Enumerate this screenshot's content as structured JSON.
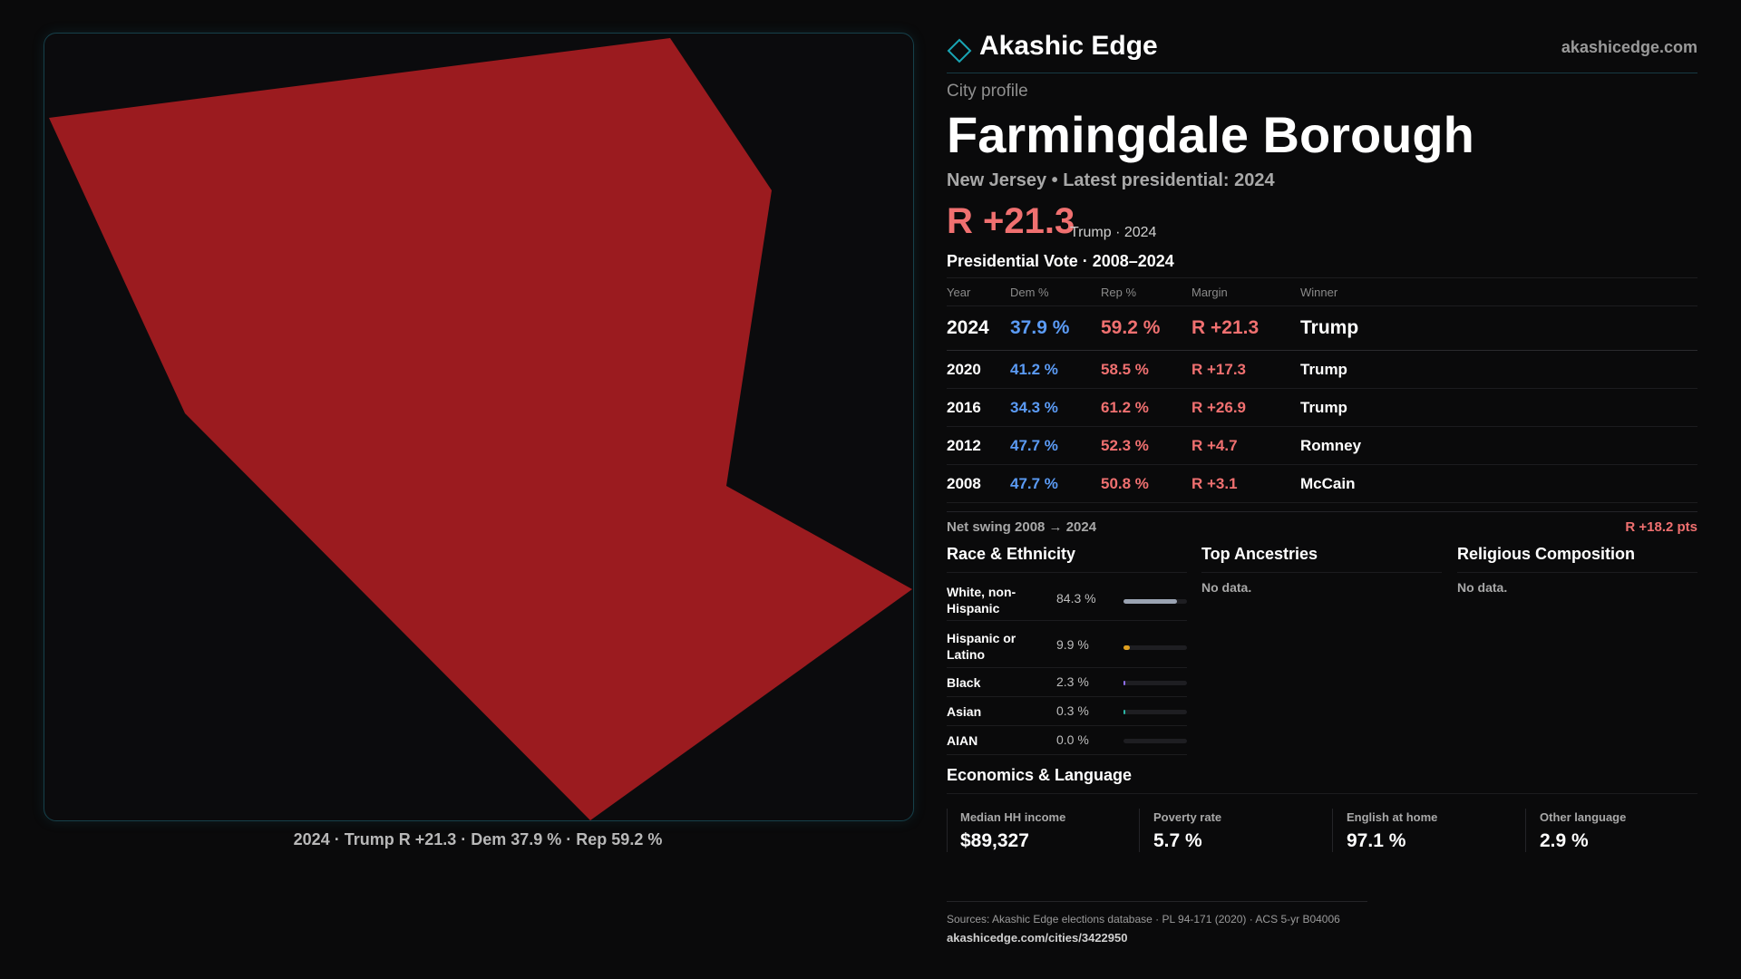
{
  "brand": {
    "name": "Akashic Edge",
    "url": "akashicedge.com",
    "accent_color": "#19a5b4",
    "icon": "diamond-icon"
  },
  "map": {
    "fill_color": "#9b1b1f",
    "caption": "2024 · Trump R +21.3 · Dem 37.9 % · Rep 59.2 %"
  },
  "profile": {
    "kicker": "City profile",
    "title": "Farmingdale Borough",
    "subline": "New Jersey • Latest presidential: 2024",
    "margin_big": "R +21.3",
    "margin_note": "Trump · 2024"
  },
  "votes": {
    "title": "Presidential Vote · 2008–2024",
    "headers": {
      "year": "Year",
      "dem": "Dem %",
      "rep": "Rep %",
      "margin": "Margin",
      "winner": "Winner"
    },
    "rows": [
      {
        "year": "2024",
        "dem": "37.9 %",
        "rep": "59.2 %",
        "margin": "R +21.3",
        "winner": "Trump"
      },
      {
        "year": "2020",
        "dem": "41.2 %",
        "rep": "58.5 %",
        "margin": "R +17.3",
        "winner": "Trump"
      },
      {
        "year": "2016",
        "dem": "34.3 %",
        "rep": "61.2 %",
        "margin": "R +26.9",
        "winner": "Trump"
      },
      {
        "year": "2012",
        "dem": "47.7 %",
        "rep": "52.3 %",
        "margin": "R +4.7",
        "winner": "Romney"
      },
      {
        "year": "2008",
        "dem": "47.7 %",
        "rep": "50.8 %",
        "margin": "R +3.1",
        "winner": "McCain"
      }
    ],
    "dem_color": "#5b9bf5",
    "rep_color": "#f07070"
  },
  "swing": {
    "label": "Net swing 2008 → 2024",
    "value": "R +18.2 pts"
  },
  "race": {
    "title": "Race & Ethnicity",
    "rows": [
      {
        "label": "White, non-Hispanic",
        "value": "84.3 %",
        "fraction": 0.843,
        "color": "#9aa3b2"
      },
      {
        "label": "Hispanic or Latino",
        "value": "9.9 %",
        "fraction": 0.099,
        "color": "#e0a020"
      },
      {
        "label": "Black",
        "value": "2.3 %",
        "fraction": 0.023,
        "color": "#8f6ff0"
      },
      {
        "label": "Asian",
        "value": "0.3 %",
        "fraction": 0.003,
        "color": "#2bb5a5"
      },
      {
        "label": "AIAN",
        "value": "0.0 %",
        "fraction": 0.0,
        "color": "#888888"
      }
    ]
  },
  "ancestries": {
    "title": "Top Ancestries",
    "empty": "No data."
  },
  "religion": {
    "title": "Religious Composition",
    "empty": "No data."
  },
  "economics": {
    "title": "Economics & Language",
    "cells": [
      {
        "label": "Median HH income",
        "value": "$89,327"
      },
      {
        "label": "Poverty rate",
        "value": "5.7 %"
      },
      {
        "label": "English at home",
        "value": "97.1 %"
      },
      {
        "label": "Other language",
        "value": "2.9 %"
      }
    ]
  },
  "sources": {
    "line": "Sources: Akashic Edge elections database · PL 94-171 (2020) · ACS 5-yr B04006",
    "url": "akashicedge.com/cities/3422950"
  }
}
